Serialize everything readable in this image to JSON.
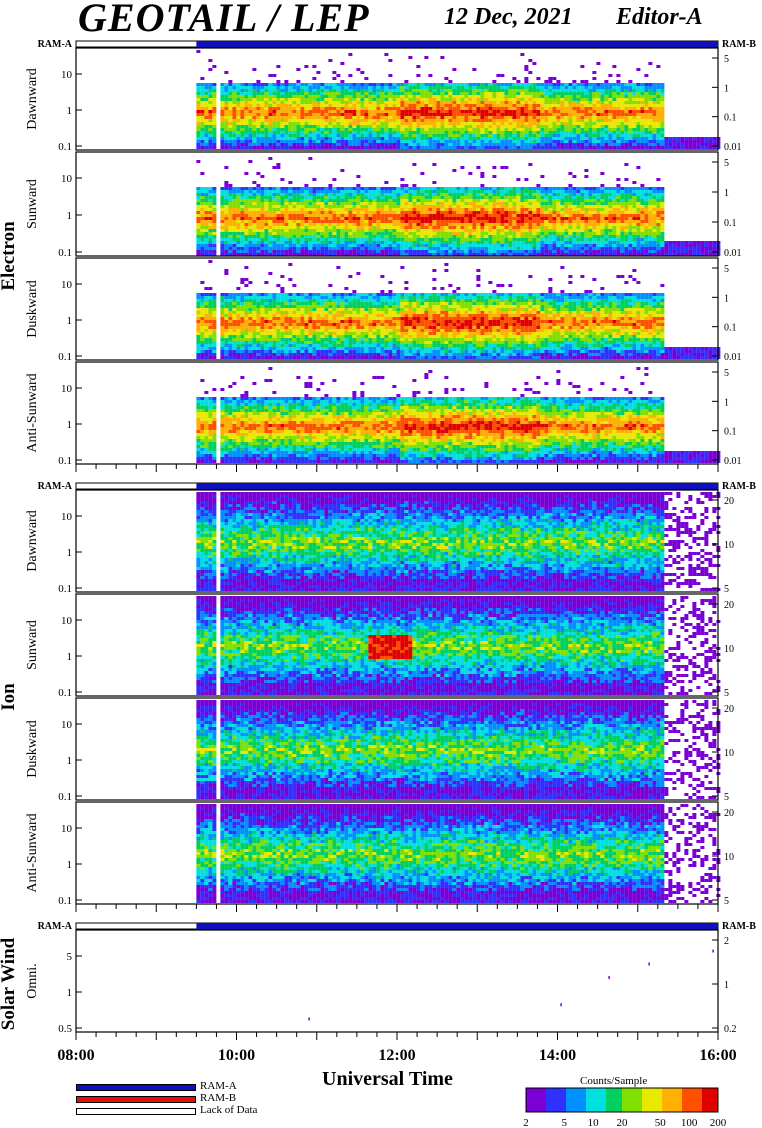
{
  "header": {
    "title": "GEOTAIL / LEP",
    "date": "12 Dec, 2021",
    "editor": "Editor-A"
  },
  "colors": {
    "ram_a": "#1010c0",
    "ram_b": "#e01010",
    "lack": "#ffffff",
    "spectrum": [
      "#7a00d6",
      "#3030ff",
      "#0090ff",
      "#00e0e0",
      "#00d060",
      "#80e000",
      "#e8e800",
      "#ffb000",
      "#ff5000",
      "#e00000"
    ]
  },
  "legend": {
    "ram_a": "RAM-A",
    "ram_b": "RAM-B",
    "lack": "Lack of Data"
  },
  "colorbar": {
    "title": "Counts/Sample",
    "ticks": [
      "2",
      "5",
      "10",
      "20",
      "50",
      "100",
      "200"
    ]
  },
  "chart_data": {
    "type": "heatmap",
    "xlabel": "Universal Time",
    "x_ticks": [
      "08:00",
      "10:00",
      "12:00",
      "14:00",
      "16:00"
    ],
    "x_range_hours": [
      8,
      16
    ],
    "data_start_hour": 9.5,
    "data_gap_hours": [
      9.72,
      9.75
    ],
    "groups": [
      {
        "name": "Electron",
        "panels": [
          {
            "label": "Dawnward",
            "left_ticks": [
              "10",
              "1",
              "0.1"
            ],
            "right_ticks": [
              "5",
              "1",
              "0.1",
              "0.01"
            ]
          },
          {
            "label": "Sunward",
            "left_ticks": [
              "10",
              "1",
              "0.1"
            ],
            "right_ticks": [
              "5",
              "1",
              "0.1",
              "0.01"
            ]
          },
          {
            "label": "Duskward",
            "left_ticks": [
              "10",
              "1",
              "0.1"
            ],
            "right_ticks": [
              "5",
              "1",
              "0.1",
              "0.01"
            ]
          },
          {
            "label": "Anti-Sunward",
            "left_ticks": [
              "10",
              "1",
              "0.1"
            ],
            "right_ticks": [
              "5",
              "1",
              "0.1",
              "0.01"
            ]
          }
        ]
      },
      {
        "name": "Ion",
        "panels": [
          {
            "label": "Dawnward",
            "left_ticks": [
              "10",
              "1",
              "0.1"
            ],
            "right_ticks": [
              "20",
              "10",
              "5"
            ]
          },
          {
            "label": "Sunward",
            "left_ticks": [
              "10",
              "1",
              "0.1"
            ],
            "right_ticks": [
              "20",
              "10",
              "5"
            ]
          },
          {
            "label": "Duskward",
            "left_ticks": [
              "10",
              "1",
              "0.1"
            ],
            "right_ticks": [
              "20",
              "10",
              "5"
            ]
          },
          {
            "label": "Anti-Sunward",
            "left_ticks": [
              "10",
              "1",
              "0.1"
            ],
            "right_ticks": [
              "20",
              "10",
              "5"
            ]
          }
        ]
      },
      {
        "name": "Solar Wind",
        "panels": [
          {
            "label": "Omni.",
            "left_ticks": [
              "5",
              "1",
              "0.5"
            ],
            "right_ticks": [
              "2",
              "1",
              "0.2"
            ]
          }
        ]
      }
    ],
    "status_label_left": "RAM-A",
    "status_label_right": "RAM-B"
  }
}
